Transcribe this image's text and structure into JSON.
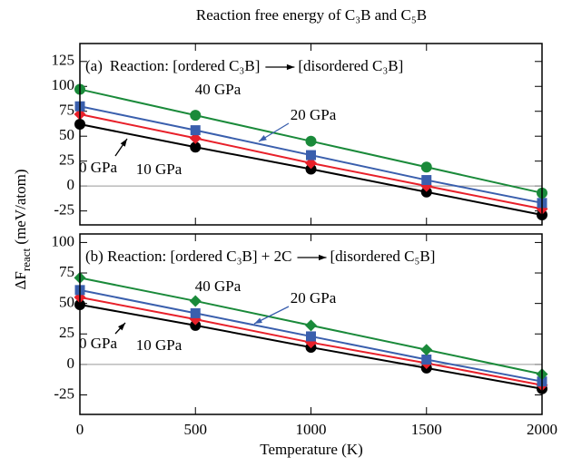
{
  "chart_data": [
    {
      "type": "line",
      "title": "Reaction free energy of C₃B and C₅B",
      "y_label": [
        "ΔF",
        "react",
        " (meV/atom)"
      ],
      "annotation": [
        "(a)",
        "Reaction: [ordered C₃B]",
        "[disordered C₃B]"
      ],
      "x": [
        0,
        500,
        1000,
        1500,
        2000
      ],
      "xlim": [
        0,
        2000
      ],
      "xticks": [
        0,
        500,
        1000,
        1500,
        2000
      ],
      "ylim": [
        -39,
        143
      ],
      "yticks": [
        -25,
        0,
        25,
        50,
        75,
        100,
        125
      ],
      "series": [
        {
          "name": "40 GPa",
          "color": "#1a8a3a",
          "marker": "circle",
          "values": [
            97,
            71,
            45,
            19,
            -7
          ]
        },
        {
          "name": "20 GPa",
          "color": "#3a5fad",
          "marker": "square",
          "values": [
            80,
            56,
            31,
            6,
            -17
          ]
        },
        {
          "name": "10 GPa",
          "color": "#e8202a",
          "marker": "diamond",
          "values": [
            72,
            48,
            23,
            0,
            -23
          ]
        },
        {
          "name": "0 GPa",
          "color": "#000000",
          "marker": "circle",
          "values": [
            62,
            39,
            17,
            -6,
            -29
          ]
        }
      ]
    },
    {
      "type": "line",
      "x_label": "Temperature (K)",
      "annotation": [
        "(b) Reaction: [ordered C₃B] + 2C",
        "[disordered C₅B]"
      ],
      "x": [
        0,
        500,
        1000,
        1500,
        2000
      ],
      "xlim": [
        0,
        2000
      ],
      "xticks": [
        0,
        500,
        1000,
        1500,
        2000
      ],
      "ylim": [
        -41,
        107
      ],
      "yticks": [
        -25,
        0,
        25,
        50,
        75,
        100
      ],
      "series": [
        {
          "name": "40 GPa",
          "color": "#1a8a3a",
          "marker": "diamond",
          "values": [
            71,
            52,
            32,
            12,
            -8
          ]
        },
        {
          "name": "20 GPa",
          "color": "#3a5fad",
          "marker": "square",
          "values": [
            61,
            42,
            23,
            4,
            -14
          ]
        },
        {
          "name": "10 GPa",
          "color": "#e8202a",
          "marker": "diamond",
          "values": [
            55,
            37,
            18,
            1,
            -17
          ]
        },
        {
          "name": "0 GPa",
          "color": "#000000",
          "marker": "circle",
          "values": [
            49,
            32,
            14,
            -3,
            -20
          ]
        }
      ]
    }
  ]
}
